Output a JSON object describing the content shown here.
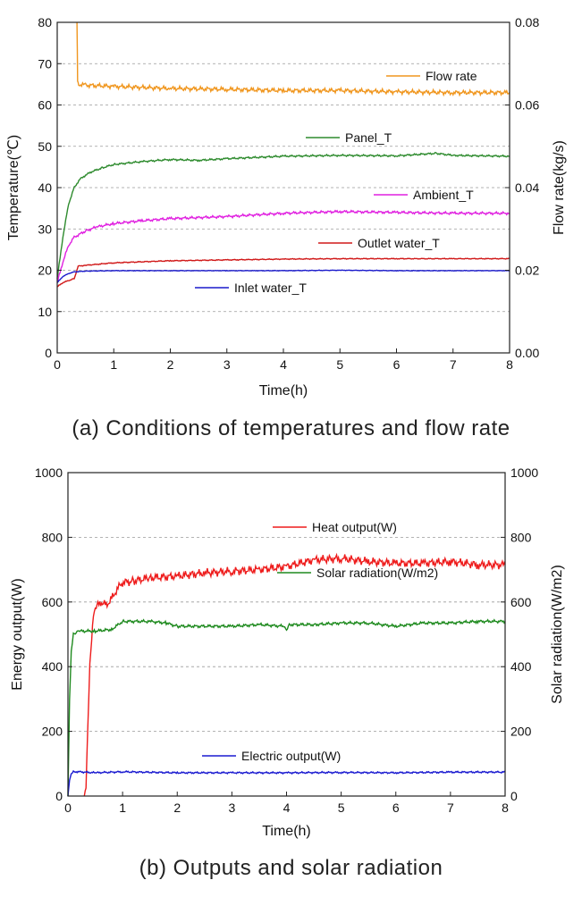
{
  "chart_data": [
    {
      "type": "line",
      "caption": "(a) Conditions of temperatures and flow rate",
      "xlabel": "Time(h)",
      "ylabel_left": "Temperature(℃)",
      "ylabel_right": "Flow rate(kg/s)",
      "xlim": [
        0,
        8
      ],
      "ylim_left": [
        0,
        80
      ],
      "ylim_right": [
        0,
        0.08
      ],
      "x_ticks": [
        0,
        1,
        2,
        3,
        4,
        5,
        6,
        7,
        8
      ],
      "y_left_ticks": [
        0,
        10,
        20,
        30,
        40,
        50,
        60,
        70,
        80
      ],
      "y_right_ticks": [
        "0.00",
        "0.02",
        "0.04",
        "0.06",
        "0.08"
      ],
      "grid": "horizontal dashed",
      "series": [
        {
          "name": "Flow rate",
          "axis": "right",
          "color": "#f0961e",
          "x": [
            0.35,
            0.36,
            0.38,
            0.5,
            1,
            2,
            3,
            4,
            5,
            6,
            7,
            8
          ],
          "y": [
            0.08,
            0.066,
            0.065,
            0.0648,
            0.0645,
            0.064,
            0.0638,
            0.0635,
            0.0635,
            0.0632,
            0.063,
            0.063
          ]
        },
        {
          "name": "Panel_T",
          "axis": "left",
          "color": "#2e8b2e",
          "x": [
            0,
            0.1,
            0.2,
            0.3,
            0.4,
            0.5,
            0.6,
            0.8,
            1,
            1.5,
            2,
            2.5,
            3,
            4,
            5,
            6,
            6.7,
            7,
            8
          ],
          "y": [
            18,
            28,
            36,
            40,
            42,
            43,
            43.8,
            44.8,
            45.6,
            46.3,
            46.8,
            46.6,
            47,
            47.6,
            47.8,
            47.7,
            48.3,
            47.8,
            47.6
          ]
        },
        {
          "name": "Ambient_T",
          "axis": "left",
          "color": "#e020e0",
          "x": [
            0,
            0.1,
            0.2,
            0.3,
            0.5,
            0.7,
            1,
            1.5,
            2,
            3,
            4,
            5,
            6,
            7,
            8
          ],
          "y": [
            17,
            22,
            26,
            28,
            29.5,
            30.5,
            31.3,
            32,
            32.5,
            33,
            33.8,
            34.2,
            34,
            33.8,
            33.8
          ]
        },
        {
          "name": "Outlet water_T",
          "axis": "left",
          "color": "#d01818",
          "x": [
            0,
            0.1,
            0.3,
            0.35,
            0.37,
            0.5,
            1,
            2,
            3,
            4,
            5,
            6,
            7,
            8
          ],
          "y": [
            16,
            17,
            18,
            20,
            21,
            21.2,
            21.8,
            22.3,
            22.5,
            22.7,
            22.8,
            22.8,
            22.8,
            22.8
          ]
        },
        {
          "name": "Inlet water_T",
          "axis": "left",
          "color": "#1a1acc",
          "x": [
            0,
            0.1,
            0.2,
            0.3,
            0.5,
            1,
            2,
            3,
            4,
            5,
            6,
            7,
            8
          ],
          "y": [
            17,
            18.5,
            19.2,
            19.6,
            19.8,
            19.9,
            19.9,
            19.9,
            19.9,
            20,
            19.9,
            19.9,
            19.9
          ]
        }
      ]
    },
    {
      "type": "line",
      "caption": "(b) Outputs and solar radiation",
      "xlabel": "Time(h)",
      "ylabel_left": "Energy output(W)",
      "ylabel_right": "Solar radiation(W/m2)",
      "xlim": [
        0,
        8
      ],
      "ylim_left": [
        0,
        1000
      ],
      "ylim_right": [
        0,
        1000
      ],
      "x_ticks": [
        0,
        1,
        2,
        3,
        4,
        5,
        6,
        7,
        8
      ],
      "y_left_ticks": [
        0,
        200,
        400,
        600,
        800,
        1000
      ],
      "y_right_ticks": [
        0,
        200,
        400,
        600,
        800,
        1000
      ],
      "grid": "horizontal dashed",
      "series": [
        {
          "name": "Heat output(W)",
          "axis": "left",
          "color": "#ee1c1c",
          "x": [
            0.3,
            0.33,
            0.36,
            0.4,
            0.45,
            0.5,
            0.6,
            0.7,
            0.8,
            0.9,
            1,
            1.2,
            1.5,
            2,
            2.5,
            3,
            3.5,
            4,
            4.5,
            5,
            5.5,
            6,
            6.5,
            7,
            7.5,
            8
          ],
          "y": [
            0,
            30,
            200,
            400,
            530,
            580,
            600,
            590,
            610,
            640,
            660,
            665,
            675,
            680,
            690,
            695,
            700,
            710,
            730,
            735,
            725,
            720,
            720,
            725,
            715,
            715
          ]
        },
        {
          "name": "Solar radiation(W/m2)",
          "axis": "right",
          "color": "#1e8a1e",
          "x": [
            0,
            0.03,
            0.06,
            0.1,
            0.15,
            0.2,
            0.5,
            0.8,
            1,
            1.5,
            1.8,
            2,
            3,
            3.5,
            3.95,
            4,
            4.05,
            4.5,
            5,
            5.5,
            6,
            6.5,
            7,
            7.5,
            8
          ],
          "y": [
            0,
            300,
            450,
            500,
            505,
            510,
            510,
            515,
            540,
            540,
            535,
            525,
            525,
            530,
            525,
            515,
            530,
            530,
            535,
            535,
            525,
            535,
            535,
            540,
            540
          ]
        },
        {
          "name": "Electric output(W)",
          "axis": "left",
          "color": "#1a1ad0",
          "x": [
            0,
            0.03,
            0.06,
            0.1,
            0.2,
            0.5,
            1,
            2,
            3,
            4,
            5,
            6,
            7,
            8
          ],
          "y": [
            0,
            50,
            70,
            75,
            75,
            72,
            75,
            72,
            72,
            72,
            73,
            72,
            74,
            74
          ]
        }
      ]
    }
  ]
}
